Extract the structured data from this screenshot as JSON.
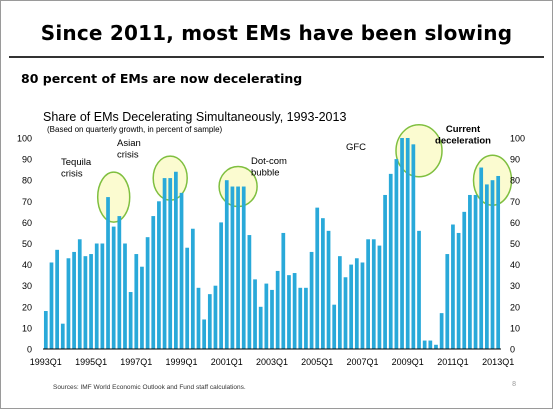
{
  "slide": {
    "title": "Since 2011, most EMs have been slowing",
    "subtitle": "80 percent of EMs are now decelerating",
    "page_number": "8"
  },
  "chart_data": {
    "type": "bar",
    "title": "Share of EMs Decelerating Simultaneously, 1993-2013",
    "subtitle": "(Based on quarterly growth, in percent of sample)",
    "source": "Sources: IMF World Economic Outlook and Fund staff calculations.",
    "bar_color": "#29a9d9",
    "circle_fill": "#fafac8",
    "circle_stroke": "#7fbf3f",
    "ylim": [
      0,
      100
    ],
    "yticks": [
      "0",
      "10",
      "20",
      "30",
      "40",
      "50",
      "60",
      "70",
      "80",
      "90",
      "100"
    ],
    "xtick_labels": [
      "1993Q1",
      "1995Q1",
      "1997Q1",
      "1999Q1",
      "2001Q1",
      "2003Q1",
      "2005Q1",
      "2007Q1",
      "2009Q1",
      "2011Q1",
      "2013Q1"
    ],
    "categories": [
      "1993Q1",
      "1993Q2",
      "1993Q3",
      "1993Q4",
      "1994Q1",
      "1994Q2",
      "1994Q3",
      "1994Q4",
      "1995Q1",
      "1995Q2",
      "1995Q3",
      "1995Q4",
      "1996Q1",
      "1996Q2",
      "1996Q3",
      "1996Q4",
      "1997Q1",
      "1997Q2",
      "1997Q3",
      "1997Q4",
      "1998Q1",
      "1998Q2",
      "1998Q3",
      "1998Q4",
      "1999Q1",
      "1999Q2",
      "1999Q3",
      "1999Q4",
      "2000Q1",
      "2000Q2",
      "2000Q3",
      "2000Q4",
      "2001Q1",
      "2001Q2",
      "2001Q3",
      "2001Q4",
      "2002Q1",
      "2002Q2",
      "2002Q3",
      "2002Q4",
      "2003Q1",
      "2003Q2",
      "2003Q3",
      "2003Q4",
      "2004Q1",
      "2004Q2",
      "2004Q3",
      "2004Q4",
      "2005Q1",
      "2005Q2",
      "2005Q3",
      "2005Q4",
      "2006Q1",
      "2006Q2",
      "2006Q3",
      "2006Q4",
      "2007Q1",
      "2007Q2",
      "2007Q3",
      "2007Q4",
      "2008Q1",
      "2008Q2",
      "2008Q3",
      "2008Q4",
      "2009Q1",
      "2009Q2",
      "2009Q3",
      "2009Q4",
      "2010Q1",
      "2010Q2",
      "2010Q3",
      "2010Q4",
      "2011Q1",
      "2011Q2",
      "2011Q3",
      "2011Q4",
      "2012Q1",
      "2012Q2",
      "2012Q3",
      "2012Q4",
      "2013Q1"
    ],
    "values": [
      18,
      41,
      47,
      12,
      43,
      46,
      52,
      44,
      45,
      50,
      50,
      72,
      58,
      63,
      50,
      27,
      45,
      39,
      53,
      63,
      70,
      81,
      81,
      84,
      74,
      48,
      57,
      29,
      14,
      26,
      30,
      60,
      80,
      77,
      77,
      77,
      54,
      33,
      20,
      31,
      28,
      37,
      55,
      35,
      36,
      29,
      29,
      46,
      67,
      62,
      56,
      21,
      44,
      34,
      40,
      43,
      41,
      52,
      52,
      49,
      73,
      83,
      90,
      100,
      100,
      97,
      56,
      4,
      4,
      2,
      17,
      45,
      59,
      55,
      65,
      73,
      73,
      86,
      78,
      80,
      82
    ],
    "annotations": [
      {
        "label_lines": [
          "Tequila",
          "crisis"
        ],
        "bold": false
      },
      {
        "label_lines": [
          "Asian",
          "crisis"
        ],
        "bold": false
      },
      {
        "label_lines": [
          "Dot-com",
          "bubble"
        ],
        "bold": false
      },
      {
        "label_lines": [
          "GFC"
        ],
        "bold": false
      },
      {
        "label_lines": [
          "Current",
          "deceleration"
        ],
        "bold": true
      }
    ]
  }
}
